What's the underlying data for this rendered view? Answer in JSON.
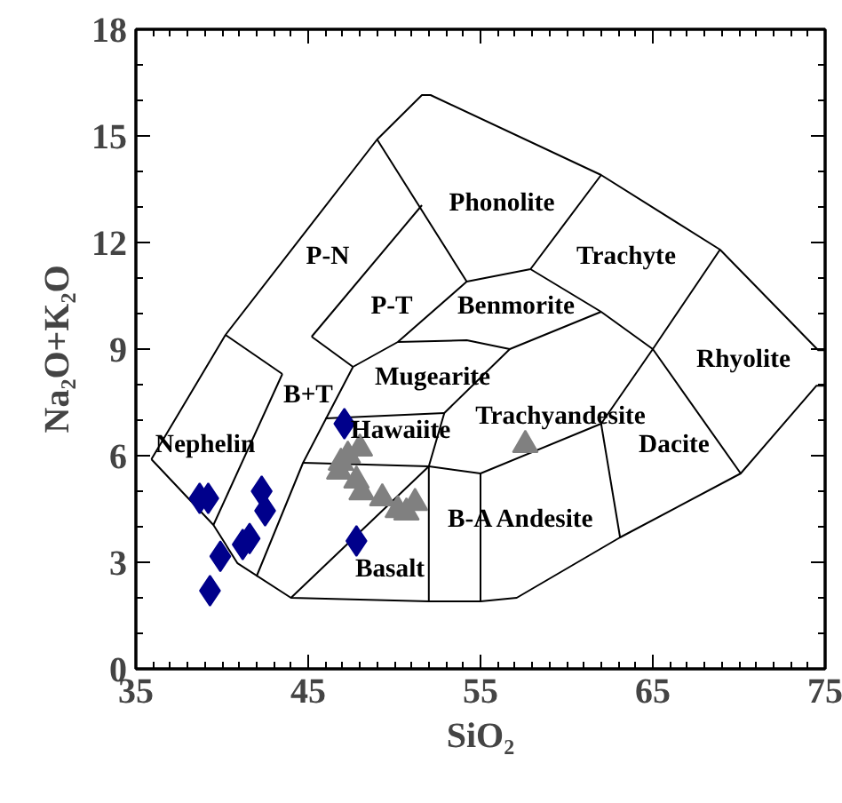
{
  "chart_data": {
    "type": "scatter",
    "xlabel": "SiO₂",
    "ylabel": "Na₂O+K₂O",
    "xlim": [
      35,
      75
    ],
    "xticks": [
      35,
      45,
      55,
      65,
      75
    ],
    "ylim": [
      0,
      18
    ],
    "yticks": [
      0,
      3,
      6,
      9,
      12,
      15,
      18
    ],
    "grid": false,
    "series": [
      {
        "type": "line",
        "color": "#000000",
        "marker": "none",
        "x": [
          35.9,
          39.5,
          40.9,
          44.0,
          52.0,
          55.0,
          57.1,
          63.1,
          70.1,
          74.5,
          75.0
        ],
        "values": [
          5.9,
          4.05,
          2.97,
          2.0,
          1.9,
          1.9,
          2.0,
          3.7,
          5.5,
          7.97,
          7.97
        ]
      },
      {
        "type": "line",
        "color": "#000000",
        "marker": "none",
        "x": [
          35.9,
          40.2,
          49.0,
          51.6,
          52.1,
          62.0,
          68.9,
          74.6,
          75.0
        ],
        "values": [
          5.9,
          9.4,
          14.9,
          16.15,
          16.15,
          13.9,
          11.8,
          8.97,
          8.97
        ]
      },
      {
        "type": "line",
        "color": "#000000",
        "marker": "none",
        "x": [
          40.2,
          43.5
        ],
        "values": [
          9.4,
          8.3
        ]
      },
      {
        "type": "line",
        "color": "#000000",
        "marker": "none",
        "x": [
          39.5,
          43.5
        ],
        "values": [
          4.05,
          8.3
        ]
      },
      {
        "type": "line",
        "color": "#000000",
        "marker": "none",
        "x": [
          49.0,
          54.2,
          57.9,
          62.0
        ],
        "values": [
          14.9,
          10.9,
          11.25,
          13.9
        ]
      },
      {
        "type": "line",
        "color": "#000000",
        "marker": "none",
        "x": [
          45.2,
          51.6
        ],
        "values": [
          9.35,
          13.05
        ]
      },
      {
        "type": "line",
        "color": "#000000",
        "marker": "none",
        "x": [
          45.2,
          47.6
        ],
        "values": [
          9.35,
          8.5
        ]
      },
      {
        "type": "line",
        "color": "#000000",
        "marker": "none",
        "x": [
          42.0,
          44.7,
          47.6
        ],
        "values": [
          2.6,
          5.8,
          8.5
        ]
      },
      {
        "type": "line",
        "color": "#000000",
        "marker": "none",
        "x": [
          47.6,
          50.2,
          54.2
        ],
        "values": [
          8.5,
          9.2,
          10.9
        ]
      },
      {
        "type": "line",
        "color": "#000000",
        "marker": "none",
        "x": [
          50.2,
          54.2,
          56.7,
          62.0
        ],
        "values": [
          9.2,
          9.25,
          9.0,
          10.05
        ]
      },
      {
        "type": "line",
        "color": "#000000",
        "marker": "none",
        "x": [
          57.9,
          62.0,
          65.0,
          70.1
        ],
        "values": [
          11.25,
          10.05,
          9.0,
          5.5
        ]
      },
      {
        "type": "line",
        "color": "#000000",
        "marker": "none",
        "x": [
          46.0,
          52.9
        ],
        "values": [
          7.05,
          7.2
        ]
      },
      {
        "type": "line",
        "color": "#000000",
        "marker": "none",
        "x": [
          52.0,
          52.0,
          52.9,
          56.7
        ],
        "values": [
          1.9,
          5.7,
          7.2,
          9.0
        ]
      },
      {
        "type": "line",
        "color": "#000000",
        "marker": "none",
        "x": [
          44.7,
          52.0,
          55.0,
          62.0,
          65.0,
          68.9
        ],
        "values": [
          5.8,
          5.7,
          5.5,
          6.9,
          9.0,
          11.8
        ]
      },
      {
        "type": "line",
        "color": "#000000",
        "marker": "none",
        "x": [
          62.0,
          63.1
        ],
        "values": [
          6.9,
          3.7
        ]
      },
      {
        "type": "line",
        "color": "#000000",
        "marker": "none",
        "x": [
          55.0,
          55.0
        ],
        "values": [
          5.5,
          1.9
        ]
      },
      {
        "type": "line",
        "color": "#000000",
        "marker": "none",
        "x": [
          44.0,
          52.0
        ],
        "values": [
          2.0,
          5.7
        ]
      },
      {
        "color": "#00008b",
        "marker": "diamond",
        "x": [
          47.1,
          38.7,
          39.2,
          42.3,
          42.5,
          41.6,
          41.2,
          39.9,
          39.3,
          47.8
        ],
        "values": [
          6.9,
          4.8,
          4.8,
          5.0,
          4.45,
          3.67,
          3.5,
          3.17,
          2.2,
          3.6
        ]
      },
      {
        "color": "#808080",
        "marker": "triangle",
        "x": [
          48.0,
          47.3,
          46.9,
          46.8,
          47.8,
          48.1,
          49.3,
          50.2,
          51.2,
          50.7,
          57.6
        ],
        "values": [
          6.2,
          6.0,
          5.8,
          5.55,
          5.3,
          4.97,
          4.8,
          4.47,
          4.67,
          4.4,
          6.3
        ]
      }
    ],
    "annotations": [
      "Phonolite",
      "Trachyte",
      "P-N",
      "P-T",
      "Benmorite",
      "Rhyolite",
      "Mugearite",
      "B+T",
      "Trachyandesite",
      "Hawaiite",
      "Nephelin",
      "Dacite",
      "B-A  Andesite",
      "Basalt"
    ]
  }
}
